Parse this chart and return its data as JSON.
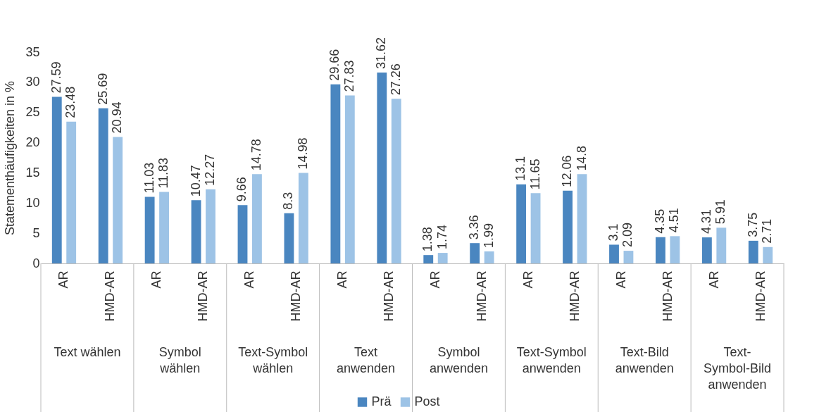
{
  "chart_data": {
    "type": "bar",
    "ylabel": "Statementhäufigkeiten in %",
    "categories": [
      "AR",
      "HMD-AR",
      "AR",
      "HMD-AR",
      "AR",
      "HMD-AR",
      "AR",
      "HMD-AR",
      "AR",
      "HMD-AR",
      "AR",
      "HMD-AR",
      "AR",
      "HMD-AR",
      "AR",
      "HMD-AR"
    ],
    "annotations": [
      "Text wählen",
      "Symbol wählen",
      "Text-Symbol wählen",
      "Text anwenden",
      "Symbol anwenden",
      "Text-Symbol anwenden",
      "Text-Bild anwenden",
      "Text-Symbol-Bild anwenden"
    ],
    "series": [
      {
        "name": "Prä",
        "color": "#4a86c0",
        "values": [
          27.59,
          25.69,
          11.03,
          10.47,
          9.66,
          8.3,
          29.66,
          31.62,
          1.38,
          3.36,
          13.1,
          12.06,
          3.1,
          4.35,
          4.31,
          3.75
        ]
      },
      {
        "name": "Post",
        "color": "#9dc3e6",
        "values": [
          23.48,
          20.94,
          11.83,
          12.27,
          14.78,
          14.98,
          27.83,
          27.26,
          1.74,
          1.99,
          11.65,
          14.8,
          2.09,
          4.51,
          5.91,
          2.71
        ]
      }
    ],
    "ylim": [
      0,
      35
    ],
    "yticks": [
      0,
      5,
      10,
      15,
      20,
      25,
      30,
      35
    ],
    "grid": false,
    "legend": "bottom",
    "data_labels": true
  }
}
